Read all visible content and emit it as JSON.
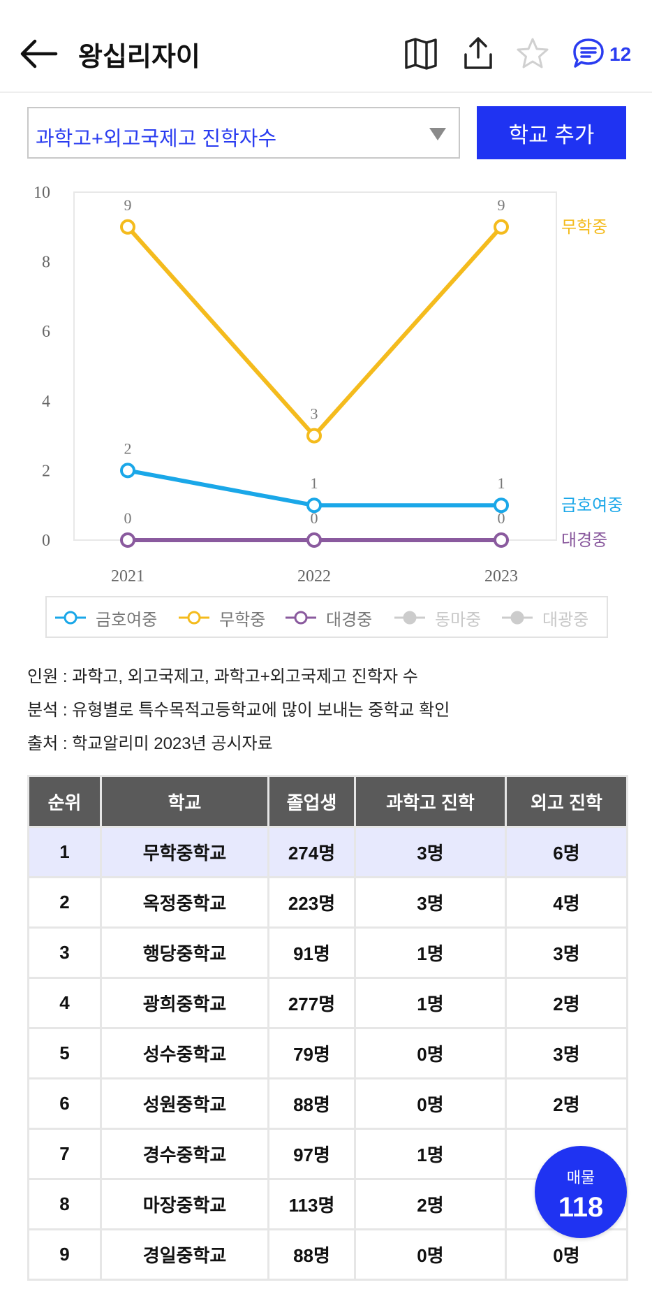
{
  "header": {
    "title": "왕십리자이",
    "comment_count": "12"
  },
  "filter": {
    "selected": "과학고+외고국제고 진학자수",
    "add_button": "학교 추가"
  },
  "chart_data": {
    "type": "line",
    "x": [
      "2021",
      "2022",
      "2023"
    ],
    "ylim": [
      0,
      10
    ],
    "yticks": [
      "0",
      "2",
      "4",
      "6",
      "8",
      "10"
    ],
    "series": [
      {
        "name": "금호여중",
        "values": [
          2,
          1,
          1
        ],
        "color": "#1aa7e8"
      },
      {
        "name": "무학중",
        "values": [
          9,
          3,
          9
        ],
        "color": "#f4bb1d"
      },
      {
        "name": "대경중",
        "values": [
          0,
          0,
          0
        ],
        "color": "#8a5a9e"
      }
    ],
    "legend": [
      {
        "name": "금호여중",
        "color": "#1aa7e8",
        "active": true
      },
      {
        "name": "무학중",
        "color": "#f4bb1d",
        "active": true
      },
      {
        "name": "대경중",
        "color": "#8a5a9e",
        "active": true
      },
      {
        "name": "동마중",
        "color": "#cccccc",
        "active": false
      },
      {
        "name": "대광중",
        "color": "#cccccc",
        "active": false
      }
    ],
    "legend_position": "bottom"
  },
  "notes": [
    "인원 : 과학고, 외고국제고, 과학고+외고국제고 진학자 수",
    "분석 : 유형별로 특수목적고등학교에 많이 보내는 중학교 확인",
    "출처 : 학교알리미 2023년 공시자료"
  ],
  "table": {
    "headers": [
      "순위",
      "학교",
      "졸업생",
      "과학고 진학",
      "외고 진학"
    ],
    "rows": [
      [
        "1",
        "무학중학교",
        "274명",
        "3명",
        "6명"
      ],
      [
        "2",
        "옥정중학교",
        "223명",
        "3명",
        "4명"
      ],
      [
        "3",
        "행당중학교",
        "91명",
        "1명",
        "3명"
      ],
      [
        "4",
        "광희중학교",
        "277명",
        "1명",
        "2명"
      ],
      [
        "5",
        "성수중학교",
        "79명",
        "0명",
        "3명"
      ],
      [
        "6",
        "성원중학교",
        "88명",
        "0명",
        "2명"
      ],
      [
        "7",
        "경수중학교",
        "97명",
        "1명",
        ""
      ],
      [
        "8",
        "마장중학교",
        "113명",
        "2명",
        ""
      ],
      [
        "9",
        "경일중학교",
        "88명",
        "0명",
        "0명"
      ]
    ]
  },
  "fab": {
    "label": "매물",
    "count": "118"
  }
}
